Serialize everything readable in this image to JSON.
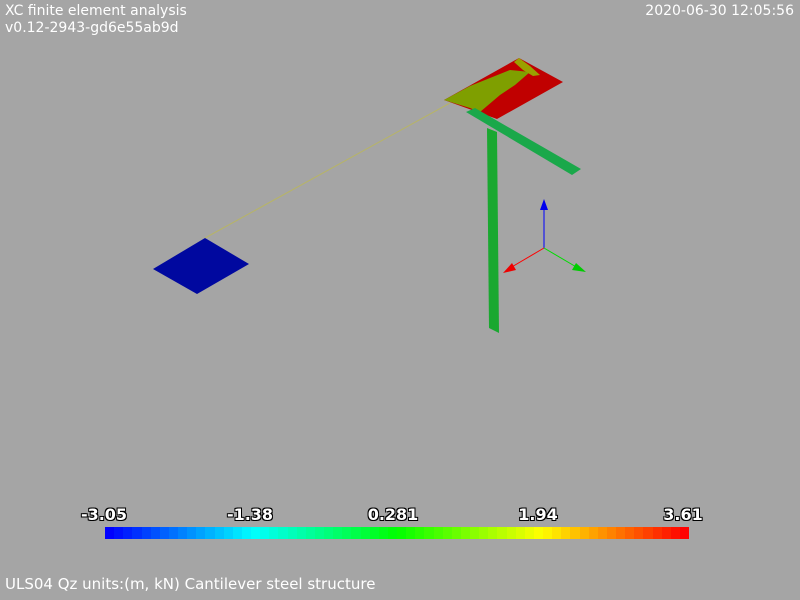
{
  "header": {
    "title": "XC finite element analysis",
    "version": "v0.12-2943-gd6e55ab9d",
    "timestamp": "2020-06-30 12:05:56"
  },
  "caption": "ULS04 Qz units:(m, kN) Cantilever steel structure",
  "colors": {
    "background": "#a5a5a5",
    "slab_blue": "#0008a0",
    "member_green": "#1aa832",
    "plate_red": "#c00000",
    "plate_olive": "#7f9f00",
    "axis_x": "#ff0000",
    "axis_y": "#00dd00",
    "axis_z": "#0000ff"
  },
  "legend": {
    "ticks": [
      "-3.05",
      "-1.38",
      "0.281",
      "1.94",
      "3.61"
    ],
    "min": -3.05,
    "max": 3.61
  }
}
